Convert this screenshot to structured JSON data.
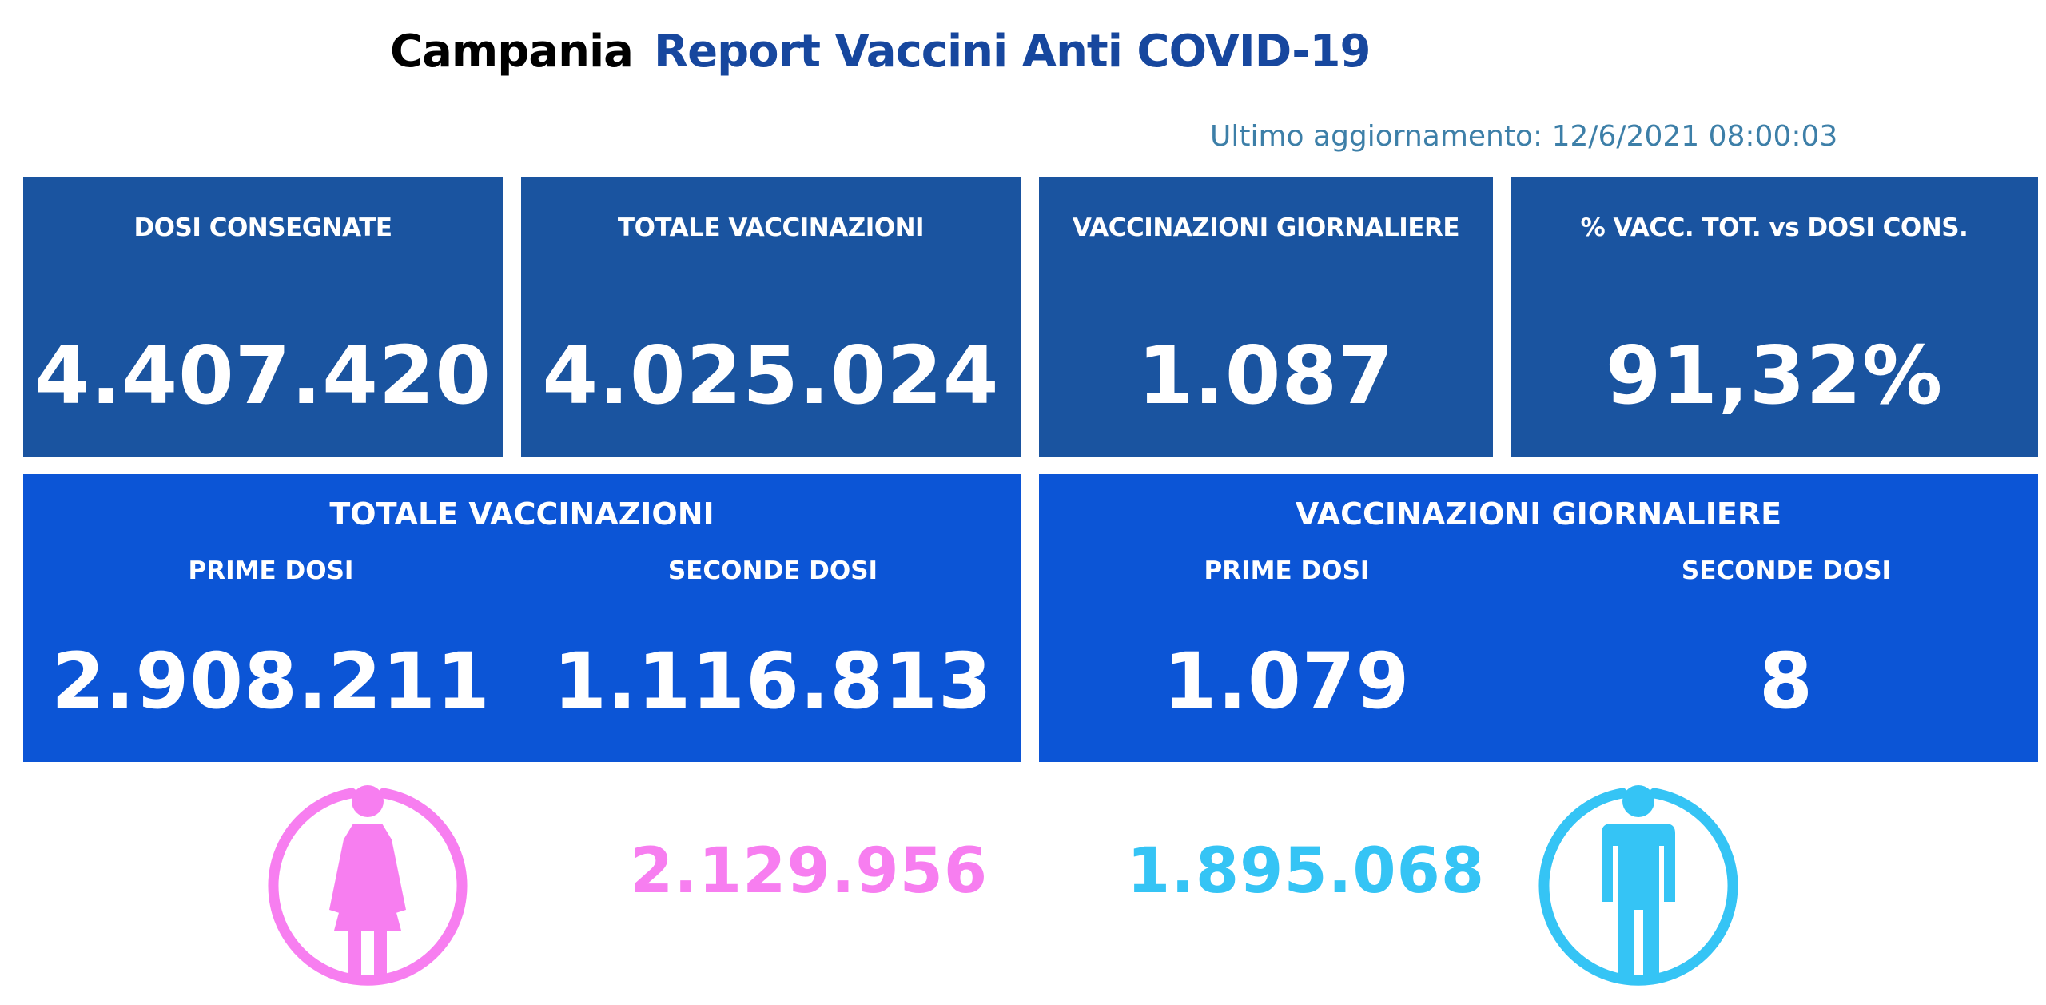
{
  "header": {
    "region": "Campania",
    "title": "Report Vaccini Anti COVID-19",
    "last_update": "Ultimo aggiornamento: 12/6/2021  08:00:03"
  },
  "kpi_cards": [
    {
      "label": "DOSI  CONSEGNATE",
      "value": "4.407.420"
    },
    {
      "label": "TOTALE VACCINAZIONI",
      "value": "4.025.024"
    },
    {
      "label": "VACCINAZIONI GIORNALIERE",
      "value": "1.087"
    },
    {
      "label": "% VACC. TOT. vs DOSI CONS.",
      "value": "91,32%"
    }
  ],
  "panels": {
    "totale": {
      "title": "TOTALE VACCINAZIONI",
      "prime_label": "PRIME DOSI",
      "prime_value": "2.908.211",
      "seconde_label": "SECONDE DOSI",
      "seconde_value": "1.116.813"
    },
    "giornaliere": {
      "title": "VACCINAZIONI GIORNALIERE",
      "prime_label": "PRIME DOSI",
      "prime_value": "1.079",
      "seconde_label": "SECONDE DOSI",
      "seconde_value": "8"
    }
  },
  "gender": {
    "female_value": "2.129.956",
    "male_value": "1.895.068",
    "female_icon": "female-person-icon",
    "male_icon": "male-person-icon"
  },
  "colors": {
    "card_blue": "#1a54a0",
    "panel_blue": "#0c55d6",
    "title_blue": "#17479e",
    "female": "#f77ef0",
    "male": "#35c4f5"
  }
}
